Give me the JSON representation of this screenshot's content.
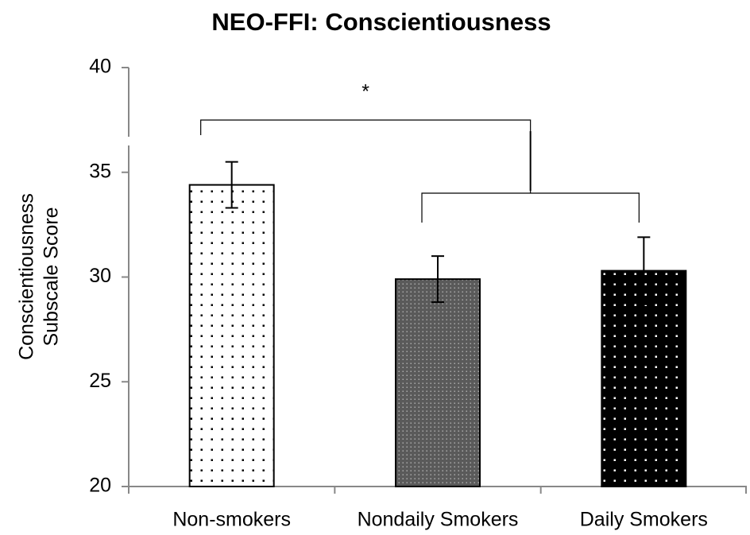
{
  "chart_data": {
    "type": "bar",
    "title": "NEO-FFI: Conscientiousness",
    "ylabel": [
      "Conscientiousness",
      "Subscale Score"
    ],
    "categories": [
      "Non-smokers",
      "Nondaily Smokers",
      "Daily Smokers"
    ],
    "values": [
      34.4,
      29.9,
      30.3
    ],
    "errors": [
      1.1,
      1.1,
      1.6
    ],
    "colors": [
      "#ffffff",
      "#5a5a5a",
      "#000000"
    ],
    "ylim": [
      20,
      40
    ],
    "yticks": [
      20,
      25,
      30,
      35,
      40
    ],
    "annotations": [
      {
        "text": "*"
      }
    ]
  }
}
